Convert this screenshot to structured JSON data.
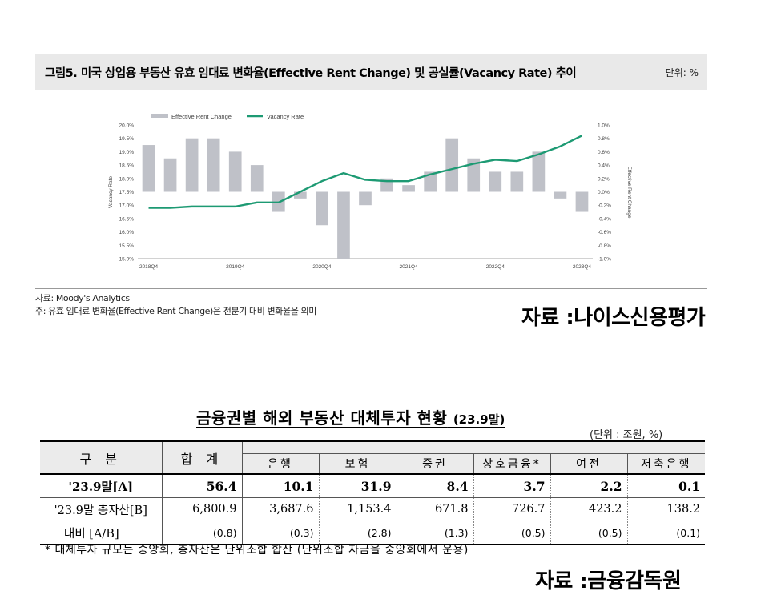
{
  "figure": {
    "title": "그림5. 미국 상업용 부동산 유효 임대료 변화율(Effective Rent Change) 및 공실률(Vacancy Rate) 추이",
    "unit": "단위: %",
    "source_note": "자료: Moody's Analytics",
    "desc_note": "주: 유효 임대료 변화율(Effective Rent Change)은 전분기 대비 변화율을 의미",
    "credit": "자료 :나이스신용평가"
  },
  "chart_data": {
    "type": "bar+line",
    "legend_position": "top-left",
    "grid": false,
    "x_tick_labels": [
      "2018Q4",
      "2019Q4",
      "2020Q4",
      "2021Q4",
      "2022Q4",
      "2023Q4"
    ],
    "left_axis": {
      "label": "Vacancy Rate",
      "range": [
        15.0,
        20.0
      ],
      "ticks": [
        "20.0%",
        "19.5%",
        "19.0%",
        "18.5%",
        "18.0%",
        "17.5%",
        "17.0%",
        "16.5%",
        "16.0%",
        "15.5%",
        "15.0%"
      ]
    },
    "right_axis": {
      "label": "Effective Rent Change",
      "range": [
        -1.0,
        1.0
      ],
      "ticks": [
        "1.0%",
        "0.8%",
        "0.6%",
        "0.4%",
        "0.2%",
        "0.0%",
        "-0.2%",
        "-0.4%",
        "-0.6%",
        "-0.8%",
        "-1.0%"
      ]
    },
    "x": [
      "2018Q4",
      "2019Q1",
      "2019Q2",
      "2019Q3",
      "2019Q4",
      "2020Q1",
      "2020Q2",
      "2020Q3",
      "2020Q4",
      "2021Q1",
      "2021Q2",
      "2021Q3",
      "2021Q4",
      "2022Q1",
      "2022Q2",
      "2022Q3",
      "2022Q4",
      "2023Q1",
      "2023Q2",
      "2023Q3",
      "2023Q4"
    ],
    "series": [
      {
        "name": "Effective Rent Change",
        "kind": "bar",
        "axis": "right",
        "color": "#bfc1c8",
        "values": [
          0.7,
          0.5,
          0.8,
          0.8,
          0.6,
          0.4,
          -0.3,
          -0.1,
          -0.5,
          -1.0,
          -0.2,
          0.2,
          0.1,
          0.3,
          0.8,
          0.5,
          0.3,
          0.3,
          0.6,
          -0.1,
          -0.3
        ]
      },
      {
        "name": "Vacancy Rate",
        "kind": "line",
        "axis": "left",
        "color": "#1d9a73",
        "values": [
          16.9,
          16.9,
          16.95,
          16.95,
          16.95,
          17.1,
          17.1,
          17.5,
          17.9,
          18.2,
          17.95,
          17.9,
          17.9,
          18.15,
          18.35,
          18.55,
          18.7,
          18.65,
          18.9,
          19.2,
          19.6
        ]
      }
    ]
  },
  "table": {
    "title": "금융권별 해외 부동산 대체투자 현황",
    "title_sub": "(23.9말)",
    "unit": "(단위 : 조원, %)",
    "header_label": "구 분",
    "header_total": "합 계",
    "columns": [
      "은행",
      "보험",
      "증권",
      "상호금융*",
      "여전",
      "저축은행"
    ],
    "rows": [
      {
        "label": "'23.9말[A]",
        "values": [
          "56.4",
          "10.1",
          "31.9",
          "8.4",
          "3.7",
          "2.2",
          "0.1"
        ]
      },
      {
        "label": "'23.9말 총자산[B]",
        "values": [
          "6,800.9",
          "3,687.6",
          "1,153.4",
          "671.8",
          "726.7",
          "423.2",
          "138.2"
        ]
      },
      {
        "label": "대비 [A/B]",
        "values": [
          "(0.8)",
          "(0.3)",
          "(2.8)",
          "(1.3)",
          "(0.5)",
          "(0.5)",
          "(0.1)"
        ]
      }
    ],
    "footnote": "* 대체투자 규모는 중앙회, 총자산은 단위조합 합산 (단위조합 자금을 중앙회에서 운용)",
    "credit": "자료 :금융감독원"
  }
}
